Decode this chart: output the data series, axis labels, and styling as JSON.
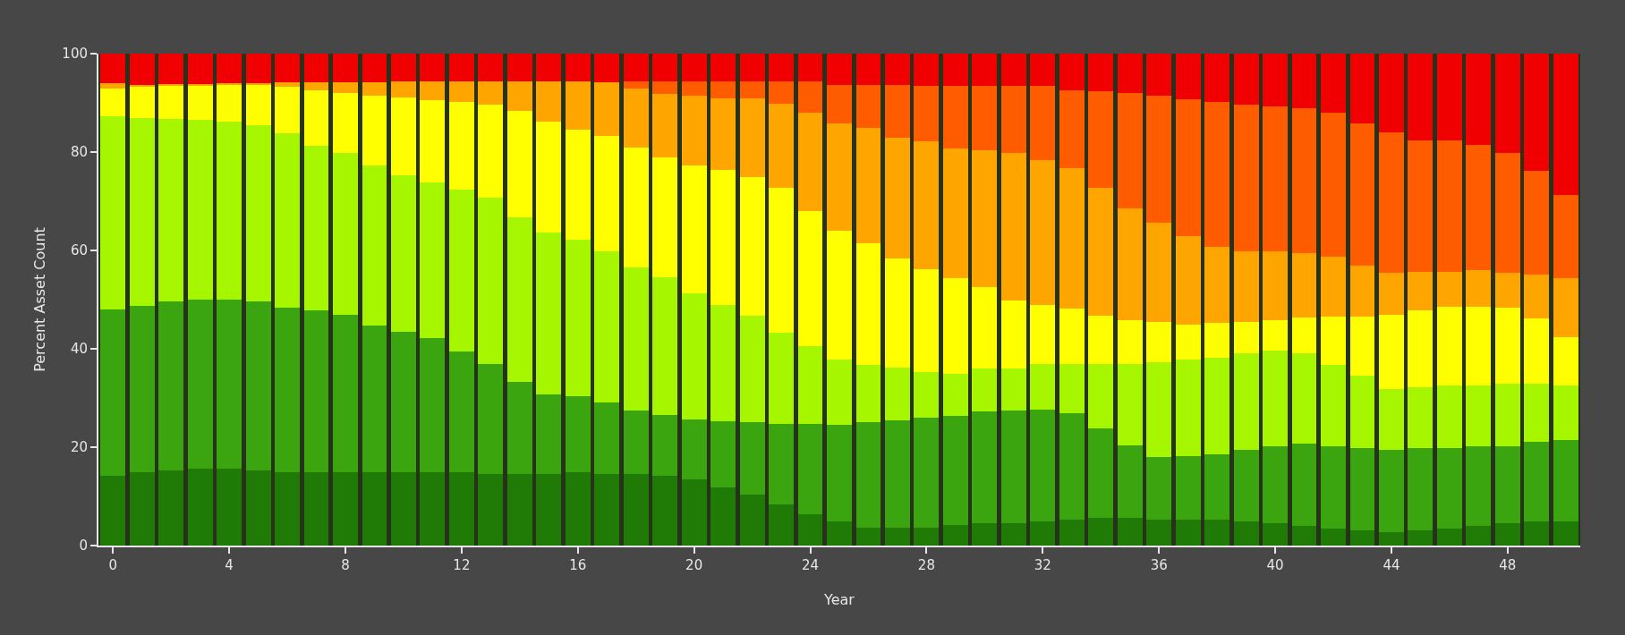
{
  "chart_data": {
    "type": "bar",
    "stacked": true,
    "xlabel": "Year",
    "ylabel": "Percent Asset Count",
    "x": [
      0,
      1,
      2,
      3,
      4,
      5,
      6,
      7,
      8,
      9,
      10,
      11,
      12,
      13,
      14,
      15,
      16,
      17,
      18,
      19,
      20,
      21,
      22,
      23,
      24,
      25,
      26,
      27,
      28,
      29,
      30,
      31,
      32,
      33,
      34,
      35,
      36,
      37,
      38,
      39,
      40,
      41,
      42,
      43,
      44,
      45,
      46,
      47,
      48,
      49,
      50
    ],
    "xlim": [
      -0.5,
      50.5
    ],
    "xticks": [
      0,
      4,
      8,
      12,
      16,
      20,
      24,
      28,
      32,
      36,
      40,
      44,
      48
    ],
    "ylim": [
      0,
      100
    ],
    "yticks": [
      0,
      20,
      40,
      60,
      80,
      100
    ],
    "grid": false,
    "series": [
      {
        "color": "#1f7a06",
        "values": [
          14.2,
          15,
          15.3,
          15.7,
          15.7,
          15.3,
          15,
          15,
          15,
          15,
          15,
          15,
          15,
          14.6,
          14.6,
          14.6,
          15,
          14.6,
          14.6,
          14.2,
          13.4,
          11.9,
          10.3,
          8.4,
          6.3,
          4.9,
          3.7,
          3.7,
          3.7,
          4.1,
          4.5,
          4.5,
          4.9,
          5.3,
          5.7,
          5.7,
          5.3,
          5.3,
          5.3,
          4.9,
          4.5,
          4.0,
          3.5,
          3.1,
          2.7,
          3.1,
          3.5,
          4.0,
          4.5,
          5.0,
          4.9
        ]
      },
      {
        "color": "#3aa50f",
        "values": [
          33.8,
          33.8,
          34.3,
          34.3,
          34.3,
          34.3,
          33.3,
          32.9,
          31.9,
          29.8,
          28.5,
          27.2,
          24.5,
          22.3,
          18.6,
          16.2,
          15.4,
          14.5,
          12.8,
          12.3,
          12.2,
          13.3,
          14.8,
          16.3,
          18.4,
          19.6,
          21.4,
          21.8,
          22.3,
          22.3,
          22.7,
          22.9,
          22.7,
          21.7,
          18.2,
          14.7,
          12.7,
          12.9,
          13.3,
          14.5,
          15.7,
          16.8,
          16.7,
          16.7,
          16.7,
          16.7,
          16.3,
          16.2,
          15.7,
          16.1,
          16.6
        ]
      },
      {
        "color": "#a6f600",
        "values": [
          39.2,
          38.2,
          37.2,
          36.6,
          36.2,
          35.8,
          35.6,
          33.3,
          32.9,
          32.4,
          31.7,
          31.6,
          32.8,
          33.8,
          33.5,
          32.9,
          31.8,
          30.8,
          29.1,
          28.1,
          25.6,
          23.7,
          21.7,
          18.5,
          15.8,
          13.4,
          11.6,
          10.6,
          9.3,
          8.5,
          8.8,
          8.6,
          9.3,
          9.9,
          13.1,
          16.6,
          19.3,
          19.6,
          19.6,
          19.7,
          19.4,
          18.3,
          16.6,
          14.7,
          12.4,
          12.4,
          12.8,
          12.4,
          12.7,
          11.8,
          11.1
        ]
      },
      {
        "color": "#ffff00",
        "values": [
          5.8,
          6.4,
          6.8,
          7.0,
          7.4,
          8.2,
          9.3,
          11.4,
          12.2,
          14.2,
          15.9,
          16.7,
          17.8,
          19.0,
          21.7,
          22.5,
          22.3,
          23.3,
          24.5,
          24.4,
          26.1,
          27.4,
          28.1,
          29.6,
          27.5,
          26.1,
          24.7,
          22.2,
          20.8,
          19.4,
          16.6,
          13.9,
          12.0,
          11.3,
          9.7,
          8.9,
          8.2,
          7.2,
          7.0,
          6.4,
          6.3,
          7.2,
          9.8,
          12.1,
          15.1,
          15.7,
          16.0,
          16.0,
          15.5,
          13.2,
          9.8
        ]
      },
      {
        "color": "#ffa500",
        "values": [
          1.0,
          0.3,
          0.3,
          0.3,
          0.4,
          0.4,
          0.9,
          1.5,
          2.2,
          2.8,
          3.2,
          3.8,
          4.2,
          4.6,
          5.9,
          8.1,
          9.8,
          11.0,
          12.0,
          12.8,
          14.2,
          14.6,
          16.0,
          17.1,
          20.0,
          21.9,
          23.5,
          24.6,
          26.0,
          26.5,
          27.8,
          29.9,
          29.5,
          28.5,
          26.0,
          22.7,
          20.2,
          18.0,
          15.6,
          14.4,
          14.0,
          13.2,
          12.1,
          10.4,
          8.6,
          7.7,
          7.0,
          7.4,
          7.1,
          9.0,
          11.9
        ]
      },
      {
        "color": "#ff5c00",
        "values": [
          0,
          0,
          0,
          0,
          0,
          0,
          0,
          0,
          0,
          0,
          0,
          0,
          0,
          0,
          0,
          0,
          0,
          0,
          1.3,
          2.5,
          2.8,
          3.4,
          3.4,
          4.4,
          6.3,
          7.7,
          8.7,
          10.7,
          11.3,
          12.6,
          13.0,
          13.6,
          15.0,
          15.9,
          19.7,
          23.4,
          25.8,
          27.7,
          29.3,
          29.8,
          29.4,
          29.4,
          29.3,
          28.8,
          28.5,
          26.7,
          26.7,
          25.4,
          24.3,
          21.0,
          17.0
        ]
      },
      {
        "color": "#f00000",
        "values": [
          6.0,
          6.3,
          6.1,
          6.1,
          6.0,
          6.0,
          5.9,
          5.9,
          5.8,
          5.8,
          5.7,
          5.7,
          5.7,
          5.7,
          5.7,
          5.7,
          5.7,
          5.8,
          5.7,
          5.7,
          5.7,
          5.7,
          5.7,
          5.7,
          5.7,
          6.4,
          6.4,
          6.4,
          6.6,
          6.6,
          6.6,
          6.6,
          6.6,
          7.4,
          7.6,
          8.0,
          8.5,
          9.3,
          9.9,
          10.3,
          10.7,
          11.1,
          12.0,
          14.2,
          16.0,
          17.7,
          17.7,
          18.6,
          20.2,
          23.9,
          28.7
        ]
      }
    ]
  }
}
